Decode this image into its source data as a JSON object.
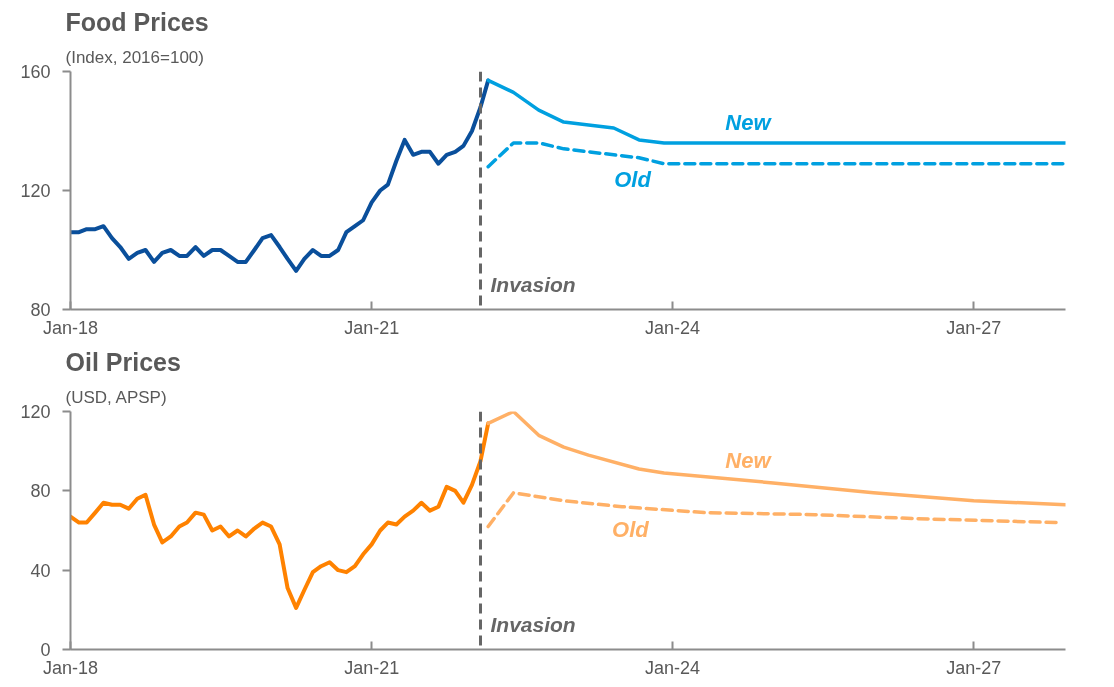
{
  "chart_data": [
    {
      "type": "line",
      "title": "Food Prices",
      "subtitle": "(Index, 2016=100)",
      "grid": false,
      "xlim": [
        "2018-01",
        "2027-12"
      ],
      "xticks": [
        {
          "value": "2018-01",
          "label": "Jan-18"
        },
        {
          "value": "2021-01",
          "label": "Jan-21"
        },
        {
          "value": "2024-01",
          "label": "Jan-24"
        },
        {
          "value": "2027-01",
          "label": "Jan-27"
        }
      ],
      "ylim": [
        80,
        160
      ],
      "yticks": [
        80,
        120,
        160
      ],
      "ref_lines": [
        {
          "axis": "x",
          "value": "2022-02",
          "label": "Invasion",
          "color": "#666666",
          "line_style": "dashed"
        }
      ],
      "series": [
        {
          "color": "#0a4f9b",
          "line_style": "solid",
          "x": [
            "2018-01",
            "2018-02",
            "2018-03",
            "2018-04",
            "2018-05",
            "2018-06",
            "2018-07",
            "2018-08",
            "2018-09",
            "2018-10",
            "2018-11",
            "2018-12",
            "2019-01",
            "2019-02",
            "2019-03",
            "2019-04",
            "2019-05",
            "2019-06",
            "2019-07",
            "2019-08",
            "2019-09",
            "2019-10",
            "2019-11",
            "2019-12",
            "2020-01",
            "2020-02",
            "2020-03",
            "2020-04",
            "2020-05",
            "2020-06",
            "2020-07",
            "2020-08",
            "2020-09",
            "2020-10",
            "2020-11",
            "2020-12",
            "2021-01",
            "2021-02",
            "2021-03",
            "2021-04",
            "2021-05",
            "2021-06",
            "2021-07",
            "2021-08",
            "2021-09",
            "2021-10",
            "2021-11",
            "2021-12",
            "2022-01",
            "2022-02",
            "2022-03"
          ],
          "values": [
            106,
            106,
            107,
            107,
            108,
            104,
            101,
            97,
            99,
            100,
            96,
            99,
            100,
            98,
            98,
            101,
            98,
            100,
            100,
            98,
            96,
            96,
            100,
            104,
            105,
            101,
            97,
            93,
            97,
            100,
            98,
            98,
            100,
            106,
            108,
            110,
            116,
            120,
            122,
            130,
            137,
            132,
            133,
            133,
            129,
            132,
            133,
            135,
            140,
            148,
            157
          ]
        },
        {
          "name": "New",
          "color": "#00a0e0",
          "line_style": "solid",
          "x": [
            "2022-03",
            "2022-06",
            "2022-09",
            "2022-12",
            "2023-03",
            "2023-06",
            "2023-09",
            "2023-12",
            "2024-12",
            "2025-12",
            "2026-12",
            "2027-12"
          ],
          "values": [
            157,
            153,
            147,
            143,
            142,
            141,
            137,
            136,
            136,
            136,
            136,
            136
          ]
        },
        {
          "name": "Old",
          "color": "#00a0e0",
          "line_style": "dashed",
          "x": [
            "2022-03",
            "2022-06",
            "2022-09",
            "2022-12",
            "2023-06",
            "2023-09",
            "2023-12",
            "2024-12",
            "2025-12",
            "2026-12",
            "2027-12"
          ],
          "values": [
            128,
            136,
            136,
            134,
            132,
            131,
            129,
            129,
            129,
            129,
            129
          ]
        }
      ]
    },
    {
      "type": "line",
      "title": "Oil Prices",
      "subtitle": "(USD, APSP)",
      "grid": false,
      "xlim": [
        "2018-01",
        "2027-12"
      ],
      "xticks": [
        {
          "value": "2018-01",
          "label": "Jan-18"
        },
        {
          "value": "2021-01",
          "label": "Jan-21"
        },
        {
          "value": "2024-01",
          "label": "Jan-24"
        },
        {
          "value": "2027-01",
          "label": "Jan-27"
        }
      ],
      "ylim": [
        0,
        120
      ],
      "yticks": [
        0,
        40,
        80,
        120
      ],
      "ref_lines": [
        {
          "axis": "x",
          "value": "2022-02",
          "label": "Invasion",
          "color": "#666666",
          "line_style": "dashed"
        }
      ],
      "series": [
        {
          "color": "#ff8200",
          "line_style": "solid",
          "x": [
            "2018-01",
            "2018-02",
            "2018-03",
            "2018-04",
            "2018-05",
            "2018-06",
            "2018-07",
            "2018-08",
            "2018-09",
            "2018-10",
            "2018-11",
            "2018-12",
            "2019-01",
            "2019-02",
            "2019-03",
            "2019-04",
            "2019-05",
            "2019-06",
            "2019-07",
            "2019-08",
            "2019-09",
            "2019-10",
            "2019-11",
            "2019-12",
            "2020-01",
            "2020-02",
            "2020-03",
            "2020-04",
            "2020-05",
            "2020-06",
            "2020-07",
            "2020-08",
            "2020-09",
            "2020-10",
            "2020-11",
            "2020-12",
            "2021-01",
            "2021-02",
            "2021-03",
            "2021-04",
            "2021-05",
            "2021-06",
            "2021-07",
            "2021-08",
            "2021-09",
            "2021-10",
            "2021-11",
            "2021-12",
            "2022-01",
            "2022-02",
            "2022-03"
          ],
          "values": [
            67,
            64,
            64,
            69,
            74,
            73,
            73,
            71,
            76,
            78,
            63,
            54,
            57,
            62,
            64,
            69,
            68,
            60,
            62,
            57,
            60,
            57,
            61,
            64,
            62,
            53,
            31,
            21,
            30,
            39,
            42,
            44,
            40,
            39,
            42,
            48,
            53,
            60,
            64,
            63,
            67,
            70,
            74,
            70,
            72,
            82,
            80,
            74,
            83,
            95,
            114
          ]
        },
        {
          "name": "New",
          "color": "#ffb066",
          "line_style": "solid",
          "x": [
            "2022-03",
            "2022-06",
            "2022-09",
            "2022-12",
            "2023-03",
            "2023-09",
            "2023-12",
            "2025-01",
            "2026-01",
            "2027-01",
            "2027-12"
          ],
          "values": [
            114,
            120,
            108,
            102,
            98,
            91,
            89,
            84,
            79,
            75,
            73
          ]
        },
        {
          "name": "Old",
          "color": "#ffb066",
          "line_style": "dashed",
          "x": [
            "2022-03",
            "2022-06",
            "2022-12",
            "2023-07",
            "2024-05",
            "2025-06",
            "2026-06",
            "2027-11"
          ],
          "values": [
            62,
            79,
            75,
            72,
            69,
            68,
            66,
            64
          ]
        }
      ]
    }
  ]
}
